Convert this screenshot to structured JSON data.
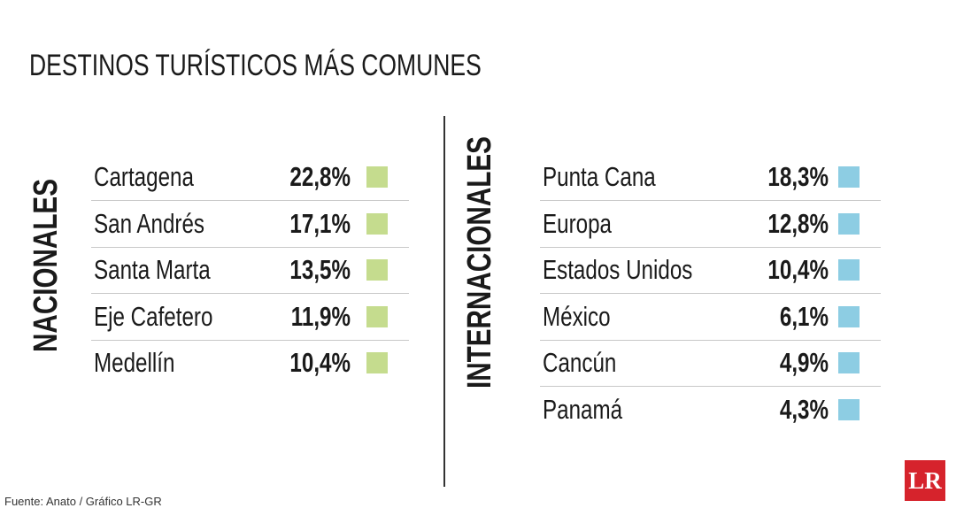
{
  "title": "DESTINOS TURÍSTICOS MÁS COMUNES",
  "sections": [
    {
      "label": "NACIONALES",
      "color": "#c5dc8e",
      "rows": [
        {
          "name": "Cartagena",
          "value": "22,8%"
        },
        {
          "name": "San Andrés",
          "value": "17,1%"
        },
        {
          "name": "Santa Marta",
          "value": "13,5%"
        },
        {
          "name": "Eje Cafetero",
          "value": "11,9%"
        },
        {
          "name": "Medellín",
          "value": "10,4%"
        }
      ]
    },
    {
      "label": "INTERNACIONALES",
      "color": "#8dcde3",
      "rows": [
        {
          "name": "Punta Cana",
          "value": "18,3%"
        },
        {
          "name": "Europa",
          "value": "12,8%"
        },
        {
          "name": "Estados Unidos",
          "value": "10,4%"
        },
        {
          "name": "México",
          "value": "6,1%"
        },
        {
          "name": "Cancún",
          "value": "4,9%"
        },
        {
          "name": "Panamá",
          "value": "4,3%"
        }
      ]
    }
  ],
  "source": "Fuente: Anato / Gráfico LR-GR",
  "logo": "LR"
}
